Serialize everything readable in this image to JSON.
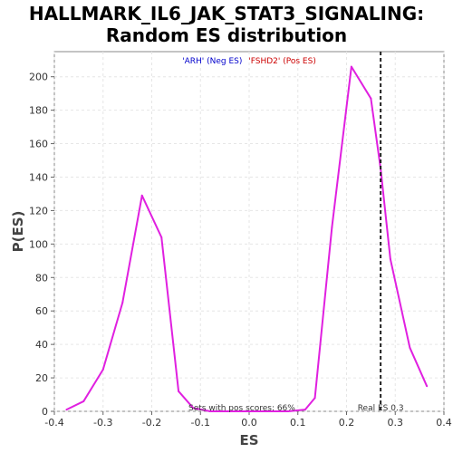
{
  "chart_data": {
    "type": "line",
    "title_line1": "HALLMARK_IL6_JAK_STAT3_SIGNALING:",
    "title_line2": "Random ES distribution",
    "xlabel": "ES",
    "ylabel": "P(ES)",
    "xlim": [
      -0.4,
      0.4
    ],
    "ylim": [
      0,
      215
    ],
    "xticks": [
      -0.4,
      -0.3,
      -0.2,
      -0.1,
      0.0,
      0.1,
      0.2,
      0.3,
      0.4
    ],
    "xtick_labels": [
      "-0.4",
      "-0.3",
      "-0.2",
      "-0.1",
      "0.0",
      "0.1",
      "0.2",
      "0.3",
      "0.4"
    ],
    "yticks": [
      0,
      20,
      40,
      60,
      80,
      100,
      120,
      140,
      160,
      180,
      200
    ],
    "ytick_labels": [
      "0",
      "20",
      "40",
      "60",
      "80",
      "100",
      "120",
      "140",
      "160",
      "180",
      "200"
    ],
    "grid": true,
    "legend": {
      "placement": "top-center",
      "neg_label": "'ARH' (Neg ES)",
      "pos_label": "'FSHD2' (Pos ES)",
      "neg_color": "#0000cc",
      "pos_color": "#cc0000"
    },
    "series": [
      {
        "color": "#e020e0",
        "x": [
          -0.375,
          -0.34,
          -0.3,
          -0.26,
          -0.22,
          -0.18,
          -0.145,
          -0.115,
          -0.08,
          -0.04,
          0.0,
          0.04,
          0.08,
          0.115,
          0.135,
          0.17,
          0.21,
          0.25,
          0.27,
          0.29,
          0.33,
          0.365
        ],
        "y": [
          1,
          6,
          25,
          65,
          129,
          104,
          12,
          2,
          0,
          0,
          0,
          0,
          0,
          1,
          8,
          110,
          206,
          187,
          145,
          91,
          38,
          15
        ]
      }
    ],
    "real_es": 0.27,
    "real_es_label": "Real ES 0.3",
    "pos_scores_label": "Sets with pos scores: 66%"
  }
}
